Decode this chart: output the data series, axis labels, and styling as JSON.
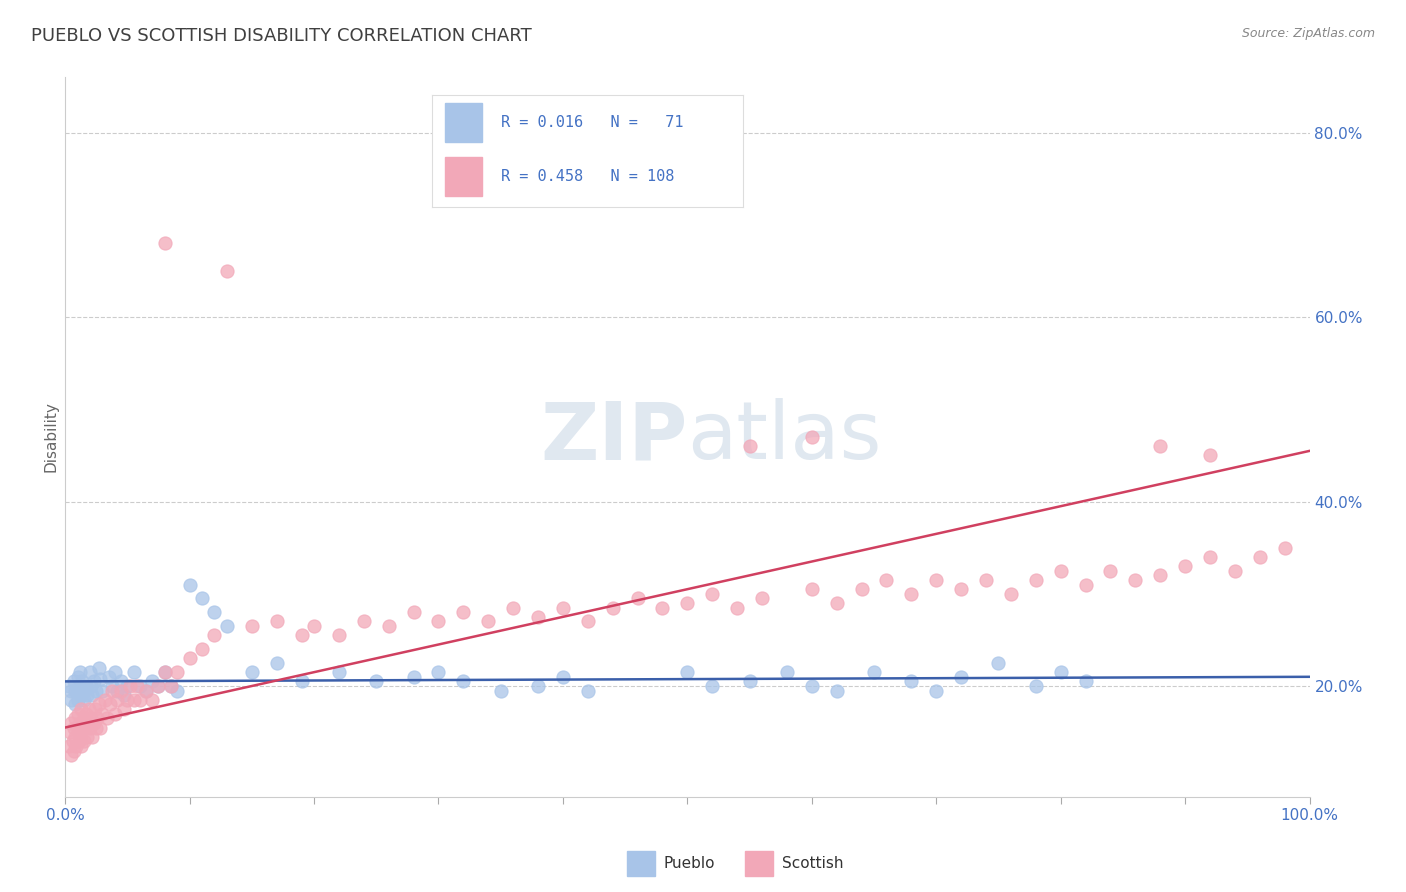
{
  "title": "PUEBLO VS SCOTTISH DISABILITY CORRELATION CHART",
  "source": "Source: ZipAtlas.com",
  "ylabel": "Disability",
  "xlim": [
    0.0,
    1.0
  ],
  "ylim": [
    0.08,
    0.86
  ],
  "pueblo_color": "#a8c4e8",
  "scottish_color": "#f2a8b8",
  "pueblo_line_color": "#3b5faa",
  "scottish_line_color": "#d04060",
  "legend_text_color": "#4472c4",
  "background_color": "#ffffff",
  "watermark_color": "#e0e8f0",
  "pueblo_points": [
    [
      0.003,
      0.2
    ],
    [
      0.005,
      0.195
    ],
    [
      0.005,
      0.185
    ],
    [
      0.007,
      0.205
    ],
    [
      0.008,
      0.195
    ],
    [
      0.008,
      0.18
    ],
    [
      0.01,
      0.21
    ],
    [
      0.01,
      0.195
    ],
    [
      0.01,
      0.185
    ],
    [
      0.012,
      0.2
    ],
    [
      0.012,
      0.215
    ],
    [
      0.013,
      0.19
    ],
    [
      0.014,
      0.205
    ],
    [
      0.015,
      0.195
    ],
    [
      0.015,
      0.185
    ],
    [
      0.017,
      0.2
    ],
    [
      0.018,
      0.19
    ],
    [
      0.02,
      0.215
    ],
    [
      0.021,
      0.2
    ],
    [
      0.022,
      0.19
    ],
    [
      0.023,
      0.205
    ],
    [
      0.025,
      0.195
    ],
    [
      0.027,
      0.22
    ],
    [
      0.028,
      0.208
    ],
    [
      0.03,
      0.195
    ],
    [
      0.035,
      0.21
    ],
    [
      0.038,
      0.2
    ],
    [
      0.04,
      0.215
    ],
    [
      0.042,
      0.195
    ],
    [
      0.045,
      0.205
    ],
    [
      0.047,
      0.19
    ],
    [
      0.05,
      0.2
    ],
    [
      0.055,
      0.215
    ],
    [
      0.06,
      0.2
    ],
    [
      0.065,
      0.195
    ],
    [
      0.07,
      0.205
    ],
    [
      0.075,
      0.2
    ],
    [
      0.08,
      0.215
    ],
    [
      0.085,
      0.2
    ],
    [
      0.09,
      0.195
    ],
    [
      0.1,
      0.31
    ],
    [
      0.11,
      0.295
    ],
    [
      0.12,
      0.28
    ],
    [
      0.13,
      0.265
    ],
    [
      0.15,
      0.215
    ],
    [
      0.17,
      0.225
    ],
    [
      0.19,
      0.205
    ],
    [
      0.22,
      0.215
    ],
    [
      0.25,
      0.205
    ],
    [
      0.28,
      0.21
    ],
    [
      0.3,
      0.215
    ],
    [
      0.32,
      0.205
    ],
    [
      0.35,
      0.195
    ],
    [
      0.38,
      0.2
    ],
    [
      0.4,
      0.21
    ],
    [
      0.42,
      0.195
    ],
    [
      0.5,
      0.215
    ],
    [
      0.52,
      0.2
    ],
    [
      0.55,
      0.205
    ],
    [
      0.58,
      0.215
    ],
    [
      0.6,
      0.2
    ],
    [
      0.62,
      0.195
    ],
    [
      0.65,
      0.215
    ],
    [
      0.68,
      0.205
    ],
    [
      0.7,
      0.195
    ],
    [
      0.72,
      0.21
    ],
    [
      0.75,
      0.225
    ],
    [
      0.78,
      0.2
    ],
    [
      0.8,
      0.215
    ],
    [
      0.82,
      0.205
    ]
  ],
  "scottish_points": [
    [
      0.003,
      0.135
    ],
    [
      0.004,
      0.15
    ],
    [
      0.005,
      0.125
    ],
    [
      0.005,
      0.16
    ],
    [
      0.006,
      0.14
    ],
    [
      0.007,
      0.155
    ],
    [
      0.007,
      0.13
    ],
    [
      0.008,
      0.145
    ],
    [
      0.008,
      0.165
    ],
    [
      0.009,
      0.135
    ],
    [
      0.01,
      0.155
    ],
    [
      0.01,
      0.17
    ],
    [
      0.011,
      0.14
    ],
    [
      0.012,
      0.16
    ],
    [
      0.012,
      0.145
    ],
    [
      0.013,
      0.175
    ],
    [
      0.013,
      0.135
    ],
    [
      0.014,
      0.155
    ],
    [
      0.015,
      0.165
    ],
    [
      0.015,
      0.14
    ],
    [
      0.016,
      0.155
    ],
    [
      0.017,
      0.17
    ],
    [
      0.018,
      0.145
    ],
    [
      0.018,
      0.16
    ],
    [
      0.019,
      0.175
    ],
    [
      0.02,
      0.155
    ],
    [
      0.021,
      0.165
    ],
    [
      0.022,
      0.145
    ],
    [
      0.023,
      0.16
    ],
    [
      0.024,
      0.175
    ],
    [
      0.025,
      0.155
    ],
    [
      0.026,
      0.165
    ],
    [
      0.027,
      0.18
    ],
    [
      0.028,
      0.155
    ],
    [
      0.03,
      0.17
    ],
    [
      0.032,
      0.185
    ],
    [
      0.034,
      0.165
    ],
    [
      0.036,
      0.18
    ],
    [
      0.038,
      0.195
    ],
    [
      0.04,
      0.17
    ],
    [
      0.042,
      0.185
    ],
    [
      0.045,
      0.195
    ],
    [
      0.047,
      0.175
    ],
    [
      0.05,
      0.185
    ],
    [
      0.052,
      0.2
    ],
    [
      0.055,
      0.185
    ],
    [
      0.058,
      0.2
    ],
    [
      0.06,
      0.185
    ],
    [
      0.065,
      0.195
    ],
    [
      0.07,
      0.185
    ],
    [
      0.075,
      0.2
    ],
    [
      0.08,
      0.215
    ],
    [
      0.085,
      0.2
    ],
    [
      0.09,
      0.215
    ],
    [
      0.1,
      0.23
    ],
    [
      0.11,
      0.24
    ],
    [
      0.12,
      0.255
    ],
    [
      0.08,
      0.68
    ],
    [
      0.13,
      0.65
    ],
    [
      0.15,
      0.265
    ],
    [
      0.17,
      0.27
    ],
    [
      0.19,
      0.255
    ],
    [
      0.2,
      0.265
    ],
    [
      0.22,
      0.255
    ],
    [
      0.24,
      0.27
    ],
    [
      0.26,
      0.265
    ],
    [
      0.28,
      0.28
    ],
    [
      0.3,
      0.27
    ],
    [
      0.32,
      0.28
    ],
    [
      0.34,
      0.27
    ],
    [
      0.36,
      0.285
    ],
    [
      0.38,
      0.275
    ],
    [
      0.4,
      0.285
    ],
    [
      0.42,
      0.27
    ],
    [
      0.44,
      0.285
    ],
    [
      0.46,
      0.295
    ],
    [
      0.48,
      0.285
    ],
    [
      0.5,
      0.29
    ],
    [
      0.52,
      0.3
    ],
    [
      0.54,
      0.285
    ],
    [
      0.56,
      0.295
    ],
    [
      0.6,
      0.305
    ],
    [
      0.62,
      0.29
    ],
    [
      0.55,
      0.46
    ],
    [
      0.6,
      0.47
    ],
    [
      0.64,
      0.305
    ],
    [
      0.66,
      0.315
    ],
    [
      0.68,
      0.3
    ],
    [
      0.7,
      0.315
    ],
    [
      0.72,
      0.305
    ],
    [
      0.74,
      0.315
    ],
    [
      0.76,
      0.3
    ],
    [
      0.78,
      0.315
    ],
    [
      0.8,
      0.325
    ],
    [
      0.82,
      0.31
    ],
    [
      0.84,
      0.325
    ],
    [
      0.86,
      0.315
    ],
    [
      0.88,
      0.32
    ],
    [
      0.9,
      0.33
    ],
    [
      0.92,
      0.34
    ],
    [
      0.94,
      0.325
    ],
    [
      0.96,
      0.34
    ],
    [
      0.98,
      0.35
    ],
    [
      0.88,
      0.46
    ],
    [
      0.92,
      0.45
    ]
  ]
}
